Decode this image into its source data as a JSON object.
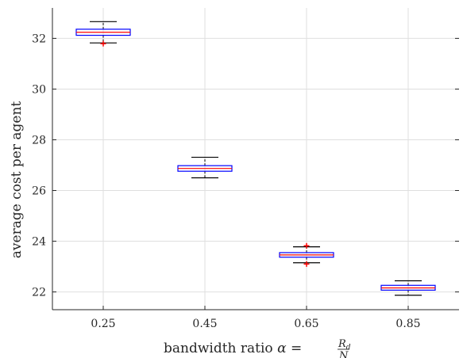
{
  "chart_data": {
    "type": "box",
    "xlabel": {
      "prefix": "bandwidth ratio ",
      "symbol": "α",
      "equals": " = ",
      "numerator": "R",
      "numerator_sub": "d",
      "denominator": "N"
    },
    "ylabel": "average cost per agent",
    "categories": [
      "0.25",
      "0.45",
      "0.65",
      "0.85"
    ],
    "ylim": [
      21.3,
      33.2
    ],
    "yticks": [
      22,
      24,
      26,
      28,
      30,
      32
    ],
    "grid": true,
    "boxes": [
      {
        "category": "0.25",
        "whisker_low": 31.82,
        "q1": 32.12,
        "median": 32.24,
        "q3": 32.36,
        "whisker_high": 32.66,
        "outliers": [
          31.79
        ]
      },
      {
        "category": "0.45",
        "whisker_low": 26.5,
        "q1": 26.76,
        "median": 26.87,
        "q3": 26.98,
        "whisker_high": 27.31,
        "outliers": []
      },
      {
        "category": "0.65",
        "whisker_low": 23.15,
        "q1": 23.37,
        "median": 23.46,
        "q3": 23.55,
        "whisker_high": 23.78,
        "outliers": [
          23.82,
          23.1
        ]
      },
      {
        "category": "0.85",
        "whisker_low": 21.87,
        "q1": 22.07,
        "median": 22.16,
        "q3": 22.26,
        "whisker_high": 22.44,
        "outliers": []
      }
    ],
    "colors": {
      "box": "#0000ff",
      "median": "#ff0000",
      "whisker": "#000000",
      "outlier": "#ff0000",
      "grid": "#dfdfdf",
      "axis": "#262626"
    }
  }
}
